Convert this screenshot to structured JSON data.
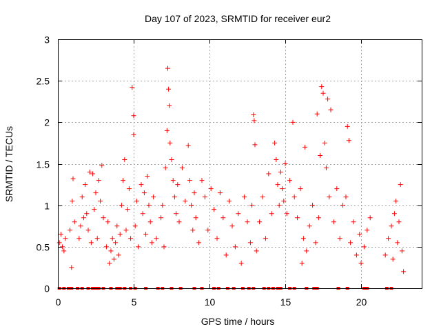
{
  "chart_data": {
    "type": "scatter",
    "title": "Day 107 of 2023, SRMTID for receiver eur2",
    "xlabel": "GPS time / hours",
    "ylabel": "SRMTID / TECUs",
    "xlim": [
      0,
      24
    ],
    "ylim": [
      0,
      3
    ],
    "xticks": [
      0,
      5,
      10,
      15,
      20
    ],
    "yticks": [
      0,
      0.5,
      1,
      1.5,
      2,
      2.5,
      3
    ],
    "xtick_labels": [
      "0",
      "5",
      "10",
      "15",
      "20"
    ],
    "ytick_labels": [
      "0",
      "0.5",
      "1",
      "1.5",
      "2",
      "2.5",
      "3"
    ],
    "grid": true,
    "marker": "plus",
    "color": "#ff0000",
    "series": [
      {
        "name": "SRMTID",
        "points": [
          [
            0.1,
            0.55
          ],
          [
            0.2,
            0.65
          ],
          [
            0.3,
            0.5
          ],
          [
            0.4,
            0.45
          ],
          [
            0.5,
            0.6
          ],
          [
            0.8,
            0.7
          ],
          [
            0.9,
            0.25
          ],
          [
            0.95,
            1.05
          ],
          [
            1.0,
            1.32
          ],
          [
            1.1,
            0.8
          ],
          [
            1.4,
            0.6
          ],
          [
            1.5,
            0.75
          ],
          [
            1.6,
            1.1
          ],
          [
            1.7,
            0.85
          ],
          [
            1.8,
            1.25
          ],
          [
            1.9,
            0.9
          ],
          [
            2.0,
            0.7
          ],
          [
            2.1,
            1.4
          ],
          [
            2.2,
            0.55
          ],
          [
            2.3,
            1.38
          ],
          [
            2.4,
            0.95
          ],
          [
            2.5,
            1.15
          ],
          [
            2.6,
            0.6
          ],
          [
            2.7,
            1.3
          ],
          [
            2.8,
            1.05
          ],
          [
            2.9,
            1.48
          ],
          [
            3.0,
            0.85
          ],
          [
            3.2,
            0.5
          ],
          [
            3.3,
            0.8
          ],
          [
            3.4,
            0.3
          ],
          [
            3.5,
            0.45
          ],
          [
            3.6,
            0.6
          ],
          [
            3.7,
            0.35
          ],
          [
            3.8,
            0.55
          ],
          [
            3.9,
            0.75
          ],
          [
            4.0,
            0.4
          ],
          [
            4.1,
            0.65
          ],
          [
            4.2,
            1.0
          ],
          [
            4.3,
            1.3
          ],
          [
            4.4,
            1.55
          ],
          [
            4.5,
            0.7
          ],
          [
            4.6,
            0.95
          ],
          [
            4.7,
            1.2
          ],
          [
            4.8,
            0.6
          ],
          [
            4.9,
            2.42
          ],
          [
            5.0,
            1.85
          ],
          [
            5.0,
            2.08
          ],
          [
            5.1,
            0.75
          ],
          [
            5.2,
            1.05
          ],
          [
            5.3,
            0.5
          ],
          [
            5.5,
            1.25
          ],
          [
            5.6,
            0.9
          ],
          [
            5.7,
            1.15
          ],
          [
            5.8,
            0.65
          ],
          [
            5.9,
            1.35
          ],
          [
            6.0,
            1.0
          ],
          [
            6.1,
            0.8
          ],
          [
            6.2,
            0.55
          ],
          [
            6.3,
            1.1
          ],
          [
            6.5,
            0.6
          ],
          [
            6.8,
            0.85
          ],
          [
            6.9,
            1.0
          ],
          [
            7.0,
            0.5
          ],
          [
            7.1,
            1.45
          ],
          [
            7.2,
            1.9
          ],
          [
            7.25,
            2.65
          ],
          [
            7.3,
            2.4
          ],
          [
            7.35,
            2.2
          ],
          [
            7.4,
            1.75
          ],
          [
            7.5,
            1.55
          ],
          [
            7.6,
            1.3
          ],
          [
            7.7,
            1.1
          ],
          [
            7.8,
            0.9
          ],
          [
            7.9,
            1.25
          ],
          [
            8.0,
            0.8
          ],
          [
            8.2,
            1.45
          ],
          [
            8.4,
            1.05
          ],
          [
            8.6,
            1.72
          ],
          [
            8.7,
            1.3
          ],
          [
            8.8,
            1.0
          ],
          [
            8.9,
            0.7
          ],
          [
            9.0,
            1.15
          ],
          [
            9.1,
            0.85
          ],
          [
            9.3,
            0.55
          ],
          [
            9.5,
            1.3
          ],
          [
            9.7,
            1.1
          ],
          [
            9.9,
            0.7
          ],
          [
            10.1,
            1.2
          ],
          [
            10.3,
            0.95
          ],
          [
            10.5,
            0.6
          ],
          [
            10.7,
            1.15
          ],
          [
            10.9,
            0.85
          ],
          [
            11.1,
            0.4
          ],
          [
            11.3,
            1.05
          ],
          [
            11.5,
            0.75
          ],
          [
            11.7,
            0.5
          ],
          [
            11.9,
            0.9
          ],
          [
            12.1,
            0.3
          ],
          [
            12.3,
            1.1
          ],
          [
            12.5,
            0.8
          ],
          [
            12.7,
            0.55
          ],
          [
            12.8,
            1.0
          ],
          [
            12.9,
            2.09
          ],
          [
            12.95,
            2.02
          ],
          [
            13.0,
            1.73
          ],
          [
            13.1,
            0.45
          ],
          [
            13.3,
            0.8
          ],
          [
            13.5,
            1.1
          ],
          [
            13.7,
            0.6
          ],
          [
            13.9,
            1.38
          ],
          [
            14.1,
            0.9
          ],
          [
            14.3,
            1.75
          ],
          [
            14.4,
            1.55
          ],
          [
            14.5,
            1.25
          ],
          [
            14.6,
            1.0
          ],
          [
            14.7,
            1.4
          ],
          [
            14.8,
            1.2
          ],
          [
            14.9,
            1.05
          ],
          [
            15.0,
            1.5
          ],
          [
            15.1,
            0.9
          ],
          [
            15.3,
            1.3
          ],
          [
            15.5,
            2.0
          ],
          [
            15.6,
            1.1
          ],
          [
            15.8,
            0.85
          ],
          [
            16.0,
            1.2
          ],
          [
            16.1,
            0.3
          ],
          [
            16.2,
            0.6
          ],
          [
            16.3,
            1.7
          ],
          [
            16.4,
            0.45
          ],
          [
            16.6,
            0.75
          ],
          [
            16.8,
            1.0
          ],
          [
            17.0,
            0.55
          ],
          [
            17.1,
            2.1
          ],
          [
            17.2,
            0.85
          ],
          [
            17.3,
            1.6
          ],
          [
            17.4,
            2.43
          ],
          [
            17.5,
            2.35
          ],
          [
            17.6,
            1.75
          ],
          [
            17.7,
            1.45
          ],
          [
            17.8,
            2.28
          ],
          [
            17.9,
            1.1
          ],
          [
            18.0,
            2.15
          ],
          [
            18.2,
            0.8
          ],
          [
            18.4,
            1.2
          ],
          [
            18.6,
            0.6
          ],
          [
            18.8,
            1.0
          ],
          [
            19.0,
            1.1
          ],
          [
            19.1,
            1.95
          ],
          [
            19.2,
            1.78
          ],
          [
            19.3,
            0.55
          ],
          [
            19.5,
            0.8
          ],
          [
            19.7,
            0.4
          ],
          [
            19.9,
            0.65
          ],
          [
            20.0,
            0.3
          ],
          [
            20.2,
            0.5
          ],
          [
            20.4,
            0.7
          ],
          [
            20.6,
            0.85
          ],
          [
            21.6,
            0.4
          ],
          [
            21.8,
            0.6
          ],
          [
            22.0,
            0.75
          ],
          [
            22.1,
            0.35
          ],
          [
            22.2,
            0.9
          ],
          [
            22.3,
            1.05
          ],
          [
            22.4,
            0.55
          ],
          [
            22.5,
            0.8
          ],
          [
            22.6,
            1.25
          ],
          [
            22.7,
            0.45
          ],
          [
            22.8,
            0.2
          ]
        ]
      }
    ],
    "zero_points_x": [
      0.1,
      0.4,
      0.7,
      0.9,
      1.3,
      1.6,
      2.0,
      2.3,
      2.5,
      2.7,
      3.0,
      3.5,
      3.9,
      4.1,
      4.4,
      4.8,
      5.1,
      5.8,
      6.6,
      6.9,
      7.5,
      8.1,
      9.0,
      9.5,
      10.3,
      10.6,
      11.2,
      11.6,
      12.2,
      12.6,
      12.9,
      13.6,
      13.9,
      14.2,
      14.5,
      14.7,
      15.3,
      15.6,
      16.4,
      16.9,
      17.1,
      18.5,
      19.1,
      20.2,
      20.4,
      21.7,
      22.0
    ]
  }
}
